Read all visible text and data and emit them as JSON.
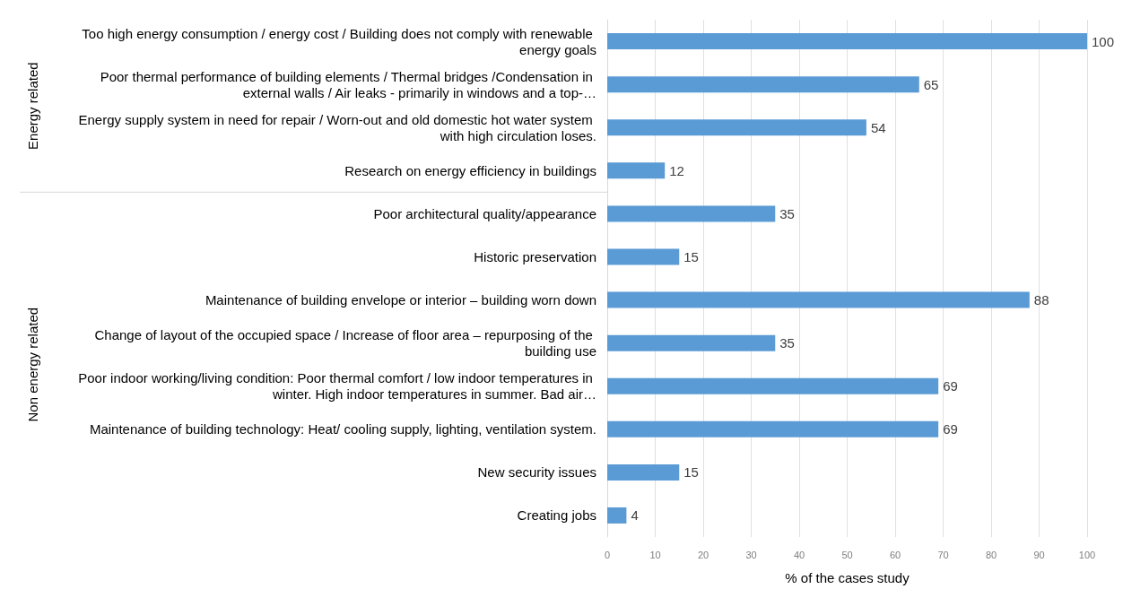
{
  "chart_data": {
    "type": "bar",
    "orientation": "horizontal",
    "xlabel": "% of the cases study",
    "categories": [
      "Too high energy consumption / energy cost / Building does not comply with renewable energy goals",
      "Poor thermal performance of building elements / Thermal bridges /Condensation in external walls / Air leaks - primarily in windows and a top-…",
      "Energy supply system in need for repair / Worn-out and old domestic hot water system with high circulation loses.",
      "Research on energy efficiency in buildings",
      "Poor architectural quality/appearance",
      "Historic preservation",
      "Maintenance of building envelope or interior – building worn down",
      "Change of layout of the occupied space / Increase of floor area – repurposing of the building use",
      "Poor indoor working/living condition: Poor thermal comfort / low indoor temperatures in winter. High indoor temperatures in summer. Bad air…",
      "Maintenance of building technology: Heat/ cooling supply, lighting, ventilation system.",
      "New security issues",
      "Creating jobs"
    ],
    "values": [
      100,
      65,
      54,
      12,
      35,
      15,
      88,
      35,
      69,
      69,
      15,
      4
    ],
    "color": "#5b9bd5",
    "data_labels": true,
    "xlim": [
      0,
      100
    ],
    "xticks": [
      0,
      10,
      20,
      30,
      40,
      50,
      60,
      70,
      80,
      90,
      100
    ],
    "grid": "x",
    "annotations": [
      "Energy related",
      "Non energy related"
    ]
  }
}
